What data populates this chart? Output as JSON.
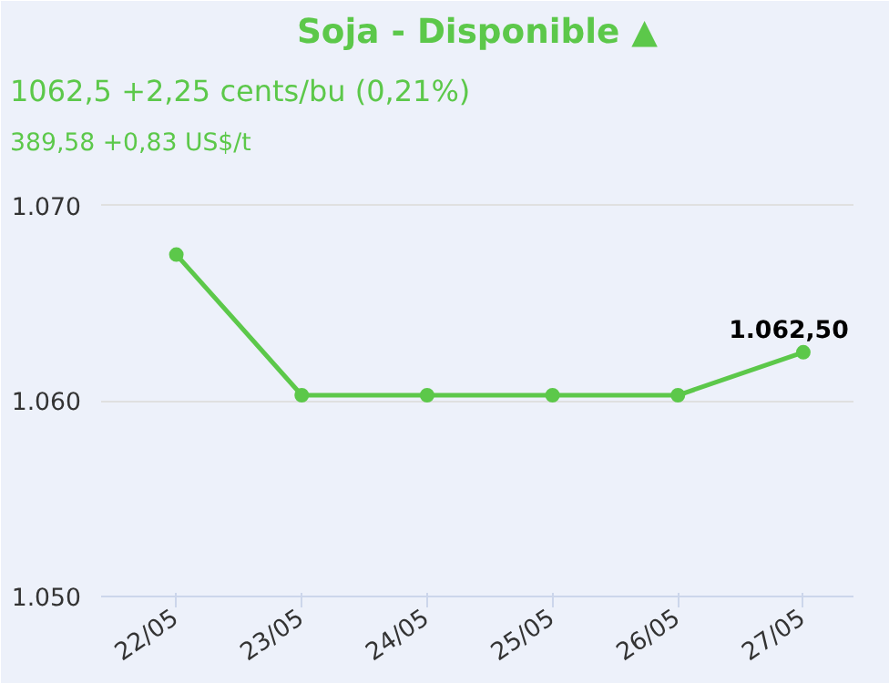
{
  "chart_data": {
    "type": "line",
    "title": "Soja - Disponible ▲",
    "subtitle": "1062,5 +2,25 cents/bu (0,21%)",
    "annotations": [
      "389,58 +0,83 US$/t"
    ],
    "categories": [
      "22/05",
      "23/05",
      "24/05",
      "25/05",
      "26/05",
      "27/05"
    ],
    "series": [
      {
        "color": "#5cc84a",
        "values": [
          1067.5,
          1060.3,
          1060.3,
          1060.3,
          1060.3,
          1062.5
        ],
        "value_labels": [
          null,
          null,
          null,
          null,
          null,
          "1.062,50"
        ]
      }
    ],
    "ylim": [
      1050,
      1072
    ],
    "yticks": [
      {
        "value": 1050,
        "label": "1.050"
      },
      {
        "value": 1060,
        "label": "1.060"
      },
      {
        "value": 1070,
        "label": "1.070"
      }
    ],
    "grid": "y",
    "marker": "circle",
    "line_style": "solid"
  }
}
